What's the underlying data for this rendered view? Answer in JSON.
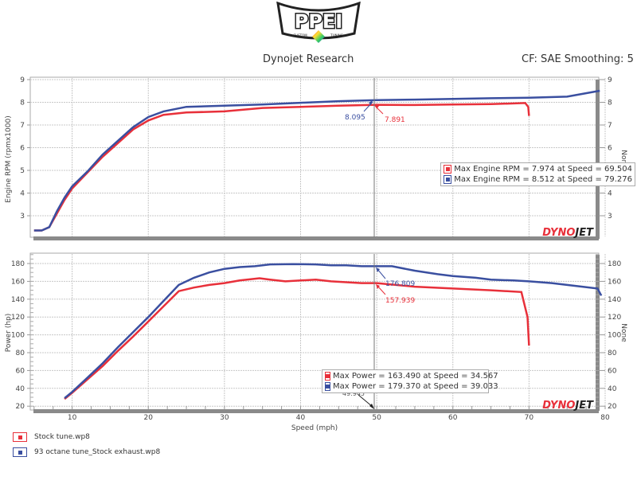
{
  "header": {
    "logo_text": "PPEI",
    "logo_sub_left": "CUSTOM",
    "logo_sub_right": "TUNING",
    "title": "Dynojet Research",
    "settings": "CF: SAE Smoothing: 5"
  },
  "colors": {
    "stock": "#e8303a",
    "tuned": "#3a4fa0",
    "grid": "#c8c8c8",
    "axis_bar": "#8a8a8a",
    "dynojet_red": "#e8303a"
  },
  "watermark": {
    "part1": "DYNO",
    "part2": "JET"
  },
  "cursor": {
    "speed": 50,
    "label": "49.945"
  },
  "rpm_panel": {
    "ylabel": "Engine RPM (rpmx1000)",
    "right_label": "None",
    "ticks": [
      "3",
      "4",
      "5",
      "6",
      "7",
      "8",
      "9"
    ],
    "cursor_values": {
      "tuned": "8.095",
      "stock": "7.891"
    },
    "legend": [
      {
        "text": "Max Engine RPM = 7.974 at Speed = 69.504",
        "series": "stock"
      },
      {
        "text": "Max Engine RPM = 8.512 at Speed = 79.276",
        "series": "tuned"
      }
    ]
  },
  "power_panel": {
    "ylabel": "Power (hp)",
    "right_label": "None",
    "ticks": [
      "20",
      "40",
      "60",
      "80",
      "100",
      "120",
      "140",
      "160",
      "180"
    ],
    "cursor_values": {
      "tuned": "176.809",
      "stock": "157.939"
    },
    "legend": [
      {
        "text": "Max Power = 163.490 at Speed = 34.567",
        "series": "stock"
      },
      {
        "text": "Max Power = 179.370 at Speed = 39.033",
        "series": "tuned"
      }
    ]
  },
  "xaxis": {
    "label": "Speed (mph)",
    "ticks": [
      "10",
      "20",
      "30",
      "40",
      "50",
      "60",
      "70",
      "80"
    ]
  },
  "files": [
    {
      "name": "Stock tune.wp8",
      "series": "stock"
    },
    {
      "name": "93 octane tune_Stock exhaust.wp8",
      "series": "tuned"
    }
  ],
  "chart_data": [
    {
      "type": "line",
      "title": "Dynojet Research",
      "xlabel": "Speed (mph)",
      "ylabel": "Engine RPM (rpmx1000)",
      "xlim": [
        4.5,
        80
      ],
      "ylim": [
        2.2,
        9
      ],
      "grid": true,
      "series": [
        {
          "name": "Stock tune.wp8",
          "x": [
            5,
            6,
            7,
            8,
            9,
            10,
            12,
            14,
            16,
            18,
            20,
            22,
            25,
            30,
            35,
            40,
            45,
            50,
            55,
            60,
            65,
            69.5,
            69.9,
            70
          ],
          "y": [
            2.35,
            2.35,
            2.5,
            3.1,
            3.7,
            4.2,
            4.9,
            5.6,
            6.2,
            6.8,
            7.2,
            7.45,
            7.55,
            7.6,
            7.75,
            7.8,
            7.85,
            7.89,
            7.88,
            7.9,
            7.92,
            7.97,
            7.8,
            7.4
          ]
        },
        {
          "name": "93 octane tune_Stock exhaust.wp8",
          "x": [
            5,
            6,
            7,
            8,
            9,
            10,
            12,
            14,
            16,
            18,
            20,
            22,
            25,
            30,
            35,
            40,
            45,
            50,
            55,
            60,
            65,
            70,
            75,
            79.3
          ],
          "y": [
            2.35,
            2.35,
            2.5,
            3.2,
            3.8,
            4.3,
            4.95,
            5.7,
            6.3,
            6.9,
            7.35,
            7.6,
            7.8,
            7.85,
            7.9,
            7.98,
            8.05,
            8.1,
            8.12,
            8.15,
            8.18,
            8.2,
            8.25,
            8.51
          ]
        }
      ],
      "annotations": [
        "8.095",
        "7.891",
        "Max Engine RPM = 7.974 at Speed = 69.504",
        "Max Engine RPM = 8.512 at Speed = 79.276"
      ]
    },
    {
      "type": "line",
      "xlabel": "Speed (mph)",
      "ylabel": "Power (hp)",
      "xlim": [
        4.5,
        80
      ],
      "ylim": [
        15,
        192
      ],
      "grid": true,
      "series": [
        {
          "name": "Stock tune.wp8",
          "x": [
            9,
            10,
            12,
            14,
            16,
            18,
            20,
            22,
            24,
            26,
            28,
            30,
            32,
            34.6,
            36,
            38,
            40,
            42,
            44,
            46,
            48,
            50,
            55,
            60,
            65,
            69,
            69.8,
            70
          ],
          "y": [
            28,
            35,
            50,
            65,
            82,
            98,
            115,
            132,
            149,
            153,
            156,
            158,
            161,
            163.5,
            162,
            160,
            161,
            162,
            160,
            159,
            158,
            158,
            154,
            152,
            150,
            148,
            120,
            88
          ]
        },
        {
          "name": "93 octane tune_Stock exhaust.wp8",
          "x": [
            9,
            10,
            12,
            14,
            16,
            18,
            20,
            22,
            24,
            26,
            28,
            30,
            32,
            34,
            36,
            39,
            42,
            44,
            46,
            48,
            50,
            52,
            55,
            58,
            60,
            63,
            65,
            68,
            70,
            73,
            75,
            77,
            79,
            79.5
          ],
          "y": [
            29,
            36,
            52,
            68,
            86,
            103,
            120,
            138,
            156,
            164,
            170,
            174,
            176,
            177,
            179,
            179.4,
            179,
            178,
            178,
            177,
            177,
            177,
            172,
            168,
            166,
            164,
            162,
            161,
            160,
            158,
            156,
            154,
            152,
            144
          ]
        }
      ],
      "annotations": [
        "176.809",
        "157.939",
        "Max Power = 163.490 at Speed = 34.567",
        "Max Power = 179.370 at Speed = 39.033"
      ]
    }
  ]
}
